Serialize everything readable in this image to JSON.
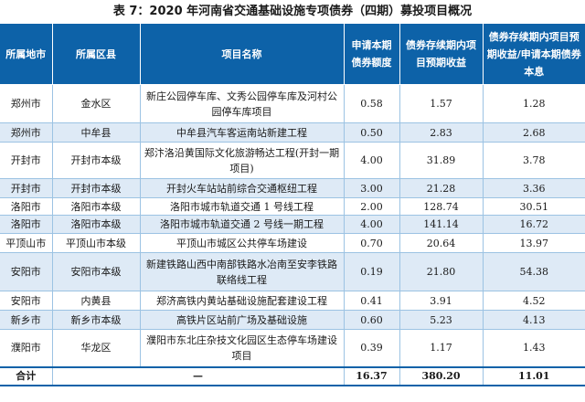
{
  "title": "表 7：2020 年河南省交通基础设施专项债券（四期）募投项目概况",
  "headers": [
    "所属地市",
    "所属区县",
    "项目名称",
    "申请本期债券额度",
    "债券存续期内项目预期收益",
    "债券存续期内项目预期收益/申请本期债券本息"
  ],
  "rows": [
    {
      "city": "郑州市",
      "county": "金水区",
      "project": "新庄公园停车库、文秀公园停车库及河村公园停车库项目",
      "amount": "0.58",
      "income": "1.57",
      "ratio": "1.28"
    },
    {
      "city": "郑州市",
      "county": "中牟县",
      "project": "中牟县汽车客运南站新建工程",
      "amount": "0.50",
      "income": "2.83",
      "ratio": "2.68"
    },
    {
      "city": "开封市",
      "county": "开封市本级",
      "project": "郑汴洛沿黄国际文化旅游畅达工程(开封一期项目)",
      "amount": "4.00",
      "income": "31.89",
      "ratio": "3.78"
    },
    {
      "city": "开封市",
      "county": "开封市本级",
      "project": "开封火车站站前综合交通枢纽工程",
      "amount": "3.00",
      "income": "21.28",
      "ratio": "3.36"
    },
    {
      "city": "洛阳市",
      "county": "洛阳市本级",
      "project": "洛阳市城市轨道交通 1 号线工程",
      "amount": "2.00",
      "income": "128.74",
      "ratio": "30.51"
    },
    {
      "city": "洛阳市",
      "county": "洛阳市本级",
      "project": "洛阳市城市轨道交通 2 号线一期工程",
      "amount": "4.00",
      "income": "141.14",
      "ratio": "16.72"
    },
    {
      "city": "平顶山市",
      "county": "平顶山市本级",
      "project": "平顶山市城区公共停车场建设",
      "amount": "0.70",
      "income": "20.64",
      "ratio": "13.97"
    },
    {
      "city": "安阳市",
      "county": "安阳市本级",
      "project": "新建铁路山西中南部铁路水冶南至安李铁路联络线工程",
      "amount": "0.19",
      "income": "21.80",
      "ratio": "54.38"
    },
    {
      "city": "安阳市",
      "county": "内黄县",
      "project": "郑济高铁内黄站基础设施配套建设工程",
      "amount": "0.41",
      "income": "3.91",
      "ratio": "4.52"
    },
    {
      "city": "新乡市",
      "county": "新乡市本级",
      "project": "高铁片区站前广场及基础设施",
      "amount": "0.60",
      "income": "5.23",
      "ratio": "4.13"
    },
    {
      "city": "濮阳市",
      "county": "华龙区",
      "project": "濮阳市东北庄杂技文化园区生态停车场建设项目",
      "amount": "0.39",
      "income": "1.17",
      "ratio": "1.43"
    }
  ],
  "total": {
    "label": "合计",
    "county": "—",
    "project": "—",
    "amount": "16.37",
    "income": "380.20",
    "ratio": "11.01"
  }
}
